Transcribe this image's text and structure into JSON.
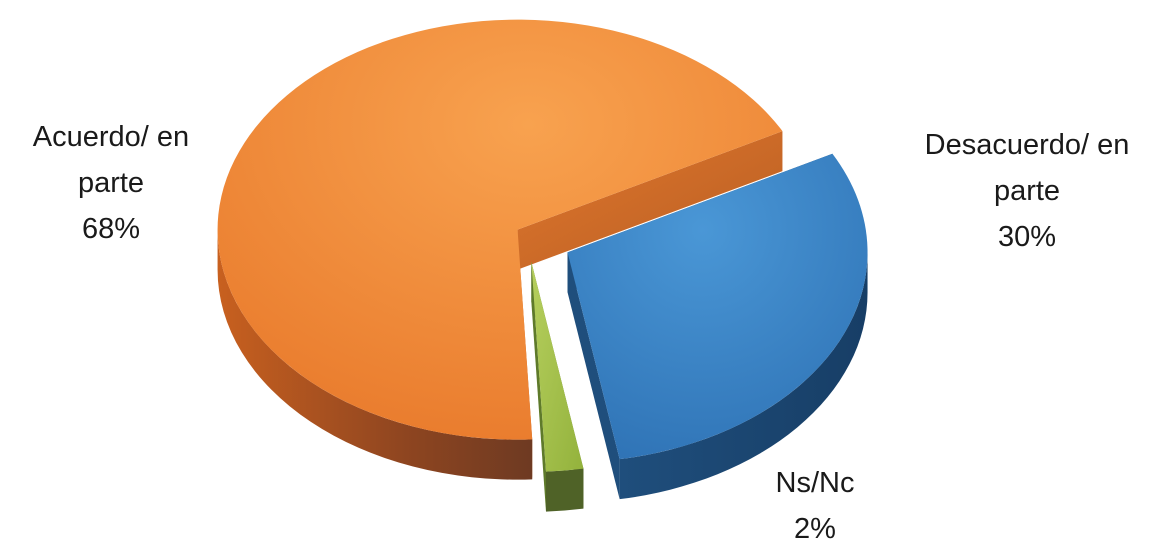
{
  "chart_data": {
    "type": "pie",
    "title": "",
    "slices": [
      {
        "label_lines": [
          "Acuerdo/ en",
          "parte"
        ],
        "percent_label": "68%",
        "value": 68,
        "color": "#ED7D31"
      },
      {
        "label_lines": [
          "Desacuerdo/ en",
          "parte"
        ],
        "percent_label": "30%",
        "value": 30,
        "color": "#2E75B6"
      },
      {
        "label_lines": [
          "Ns/Nc"
        ],
        "percent_label": "2%",
        "value": 2,
        "color": "#9BBB59"
      }
    ],
    "legend": "none",
    "style": "3d-exploded"
  }
}
